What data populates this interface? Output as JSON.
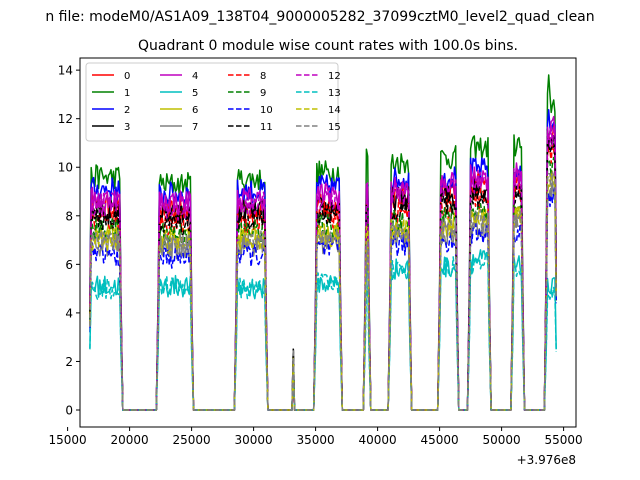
{
  "suptitle": "n file: modeM0/AS1A09_138T04_9000005282_37099cztM0_level2_quad_clean",
  "chart_data": {
    "type": "line",
    "title": "Quadrant 0 module wise count rates with 100.0s bins.",
    "xlabel": "",
    "ylabel": "",
    "x_offset_label": "+3.976e8",
    "xlim": [
      16000,
      56000
    ],
    "ylim": [
      -0.7,
      14.5
    ],
    "xticks": [
      15000,
      20000,
      25000,
      30000,
      35000,
      40000,
      45000,
      50000,
      55000
    ],
    "xtick_labels": [
      "15000",
      "20000",
      "25000",
      "30000",
      "35000",
      "40000",
      "45000",
      "50000",
      "55000"
    ],
    "yticks": [
      0,
      2,
      4,
      6,
      8,
      10,
      12,
      14
    ],
    "ytick_labels": [
      "0",
      "2",
      "4",
      "6",
      "8",
      "10",
      "12",
      "14"
    ],
    "legend_position": "top-left",
    "segments": [
      [
        16800,
        19300
      ],
      [
        22300,
        25000
      ],
      [
        28600,
        31000
      ],
      [
        35000,
        37000
      ],
      [
        39000,
        39300
      ],
      [
        41000,
        42600
      ],
      [
        45000,
        46400
      ],
      [
        47400,
        49000
      ],
      [
        50900,
        51700
      ],
      [
        53600,
        54400
      ]
    ],
    "zero_spans": [
      [
        19300,
        22300
      ],
      [
        25000,
        28600
      ],
      [
        31000,
        35000
      ],
      [
        37000,
        39000
      ],
      [
        39300,
        41000
      ],
      [
        42600,
        45000
      ],
      [
        46400,
        47400
      ],
      [
        49000,
        50900
      ],
      [
        51700,
        53600
      ]
    ],
    "spike": {
      "x": 33200,
      "value": 2.5
    },
    "series": [
      {
        "name": "0",
        "color": "#ff0000",
        "dash": false,
        "levels": [
          8.4,
          8.2,
          8.3,
          8.4,
          8.9,
          8.8,
          9.0,
          9.3,
          9.6,
          11.5
        ]
      },
      {
        "name": "1",
        "color": "#008000",
        "dash": false,
        "levels": [
          9.6,
          9.3,
          9.5,
          9.8,
          10.5,
          10.2,
          10.4,
          10.8,
          10.9,
          12.6
        ]
      },
      {
        "name": "2",
        "color": "#0000ff",
        "dash": false,
        "levels": [
          9.1,
          8.9,
          9.0,
          9.2,
          9.4,
          9.5,
          9.6,
          9.9,
          9.8,
          11.9
        ]
      },
      {
        "name": "3",
        "color": "#000000",
        "dash": false,
        "levels": [
          8.2,
          8.0,
          8.2,
          8.3,
          8.6,
          8.7,
          8.8,
          9.1,
          9.2,
          11.1
        ]
      },
      {
        "name": "4",
        "color": "#bf00bf",
        "dash": false,
        "levels": [
          8.7,
          8.6,
          8.7,
          8.9,
          9.2,
          9.1,
          9.3,
          9.6,
          9.8,
          11.6
        ]
      },
      {
        "name": "5",
        "color": "#00bfbf",
        "dash": false,
        "levels": [
          5.1,
          5.1,
          5.0,
          5.2,
          5.8,
          5.8,
          5.9,
          6.2,
          5.9,
          5.0
        ]
      },
      {
        "name": "6",
        "color": "#bfbf00",
        "dash": false,
        "levels": [
          7.2,
          7.0,
          7.1,
          7.2,
          7.5,
          7.4,
          7.6,
          7.9,
          8.0,
          9.4
        ]
      },
      {
        "name": "7",
        "color": "#808080",
        "dash": false,
        "levels": [
          6.8,
          6.7,
          6.8,
          6.9,
          7.2,
          7.1,
          7.3,
          7.6,
          7.7,
          9.0
        ]
      },
      {
        "name": "8",
        "color": "#ff0000",
        "dash": true,
        "levels": [
          7.8,
          7.7,
          7.8,
          8.0,
          8.3,
          8.2,
          8.4,
          8.7,
          8.8,
          10.6
        ]
      },
      {
        "name": "9",
        "color": "#008000",
        "dash": true,
        "levels": [
          7.4,
          7.3,
          7.4,
          7.6,
          7.9,
          7.8,
          8.0,
          8.3,
          8.4,
          10.1
        ]
      },
      {
        "name": "10",
        "color": "#0000ff",
        "dash": true,
        "levels": [
          6.4,
          6.3,
          6.4,
          6.6,
          6.9,
          6.8,
          7.0,
          7.3,
          7.4,
          8.8
        ]
      },
      {
        "name": "11",
        "color": "#000000",
        "dash": true,
        "levels": [
          7.9,
          7.7,
          7.9,
          8.1,
          8.4,
          8.3,
          8.5,
          8.8,
          8.9,
          10.8
        ]
      },
      {
        "name": "12",
        "color": "#bf00bf",
        "dash": true,
        "levels": [
          8.5,
          8.3,
          8.5,
          8.7,
          9.0,
          8.9,
          9.1,
          9.4,
          9.5,
          11.3
        ]
      },
      {
        "name": "13",
        "color": "#00bfbf",
        "dash": true,
        "levels": [
          5.0,
          5.1,
          5.0,
          5.2,
          5.1,
          5.8,
          5.9,
          6.0,
          5.8,
          4.8
        ]
      },
      {
        "name": "14",
        "color": "#bfbf00",
        "dash": true,
        "levels": [
          7.0,
          6.9,
          7.0,
          7.2,
          7.5,
          7.4,
          7.6,
          7.9,
          8.0,
          9.6
        ]
      },
      {
        "name": "15",
        "color": "#808080",
        "dash": true,
        "levels": [
          6.9,
          6.8,
          6.9,
          7.1,
          7.4,
          7.3,
          7.5,
          7.8,
          7.9,
          9.3
        ]
      }
    ]
  }
}
